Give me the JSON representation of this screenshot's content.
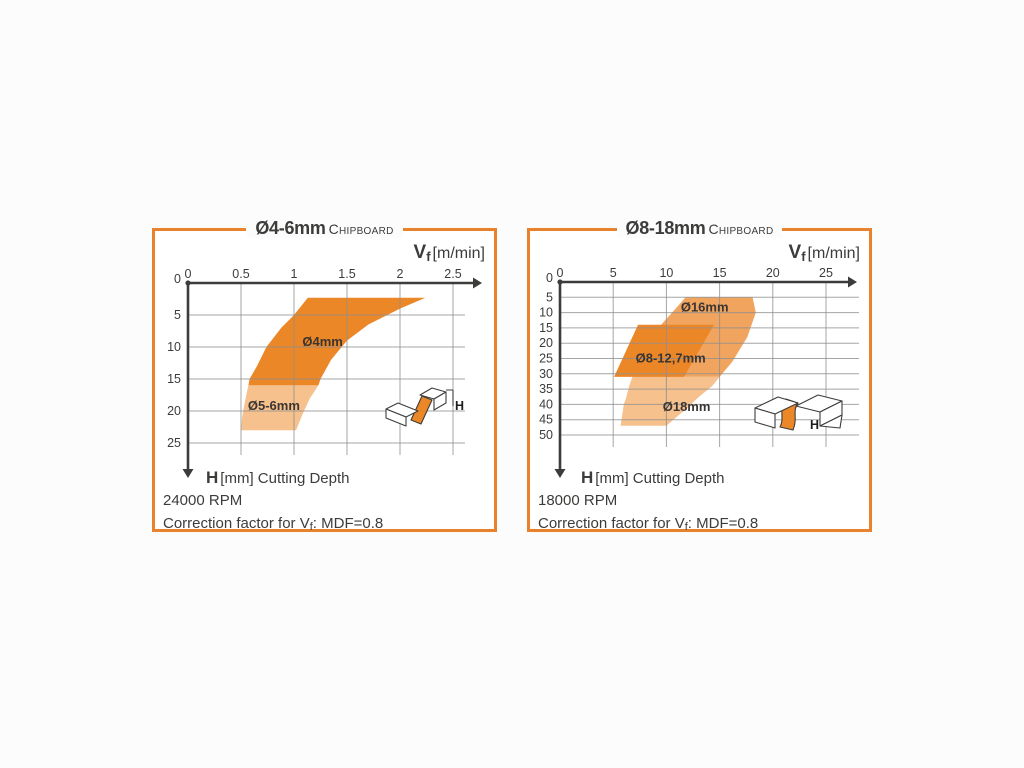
{
  "page": {
    "background": "#fcfcfc"
  },
  "colors": {
    "accent": "#E8822D",
    "band_dark": "#EC8728",
    "band_medium": "#F0A45E",
    "band_light": "#F6C18D",
    "axis": "#3C3C3B",
    "grid": "#8F8F8F",
    "text": "#3C3C3B"
  },
  "charts": [
    {
      "id": "c1",
      "title": {
        "size": "Ø4-6mm",
        "material": "Chipboard"
      },
      "x_axis": {
        "symbol": "V",
        "symbol_sub": "f",
        "unit": "[m/min]",
        "ticks": [
          "0",
          "0.5",
          "1",
          "1.5",
          "2",
          "2.5"
        ]
      },
      "y_axis": {
        "symbol": "H",
        "unit_label": "[mm] Cutting Depth",
        "ticks": [
          "0",
          "5",
          "10",
          "15",
          "20",
          "25"
        ]
      },
      "footer": {
        "rpm": "24000 RPM",
        "correction_pre": "Correction factor for V",
        "correction_sub": "f",
        "correction_post": ": MDF=0.8"
      },
      "icon_label": "H",
      "chart_data": {
        "type": "area",
        "title": "Ø4-6mm Chipboard",
        "xlabel": "Vf [m/min]",
        "ylabel": "H [mm] Cutting Depth",
        "x_range": [
          0,
          2.5
        ],
        "y_range": [
          0,
          25
        ],
        "y_axis_inverted": true,
        "grid": true,
        "annotations": [
          "24000 RPM",
          "Correction factor for Vf: MDF=0.8"
        ],
        "regions": [
          {
            "label": "Ø4mm",
            "shade": "dark",
            "label_at": [
              1.27,
              9.2
            ],
            "polygon": [
              [
                1.13,
                2.3
              ],
              [
                2.24,
                2.3
              ],
              [
                2.0,
                4.0
              ],
              [
                1.7,
                6.5
              ],
              [
                1.5,
                9.0
              ],
              [
                1.35,
                12.0
              ],
              [
                1.25,
                15.0
              ],
              [
                1.23,
                16.0
              ],
              [
                0.57,
                16.0
              ],
              [
                0.58,
                15.0
              ],
              [
                0.65,
                13.0
              ],
              [
                0.74,
                10.0
              ],
              [
                0.88,
                7.0
              ],
              [
                1.0,
                5.0
              ]
            ]
          },
          {
            "label": "Ø5-6mm",
            "shade": "light",
            "label_at": [
              0.81,
              19.2
            ],
            "polygon": [
              [
                0.57,
                16.0
              ],
              [
                1.23,
                16.0
              ],
              [
                1.15,
                18.0
              ],
              [
                1.08,
                20.5
              ],
              [
                1.02,
                23.0
              ],
              [
                0.5,
                23.0
              ],
              [
                0.51,
                21.0
              ],
              [
                0.52,
                20.0
              ],
              [
                0.55,
                17.5
              ]
            ]
          }
        ]
      }
    },
    {
      "id": "c2",
      "title": {
        "size": "Ø8-18mm",
        "material": "Chipboard"
      },
      "x_axis": {
        "symbol": "V",
        "symbol_sub": "f",
        "unit": "[m/min]",
        "ticks": [
          "0",
          "5",
          "10",
          "15",
          "20",
          "25"
        ]
      },
      "y_axis": {
        "symbol": "H",
        "unit_label": "[mm] Cutting Depth",
        "ticks": [
          "0",
          "5",
          "10",
          "15",
          "20",
          "25",
          "30",
          "35",
          "40",
          "45",
          "50"
        ]
      },
      "footer": {
        "rpm": "18000 RPM",
        "correction_pre": "Correction factor for V",
        "correction_sub": "f",
        "correction_post": ": MDF=0.8"
      },
      "icon_label": "H",
      "chart_data": {
        "type": "area",
        "title": "Ø8-18mm Chipboard",
        "xlabel": "Vf [m/min]",
        "ylabel": "H [mm] Cutting Depth",
        "x_range": [
          0,
          25
        ],
        "y_range": [
          0,
          50
        ],
        "y_axis_inverted": true,
        "grid": true,
        "annotations": [
          "18000 RPM",
          "Correction factor for Vf: MDF=0.8"
        ],
        "regions": [
          {
            "label": "Ø16mm",
            "shade": "medium",
            "label_at": [
              13.6,
              8.4
            ],
            "polygon": [
              [
                11.8,
                5
              ],
              [
                18.1,
                5
              ],
              [
                18.4,
                10
              ],
              [
                17.6,
                18
              ],
              [
                16.2,
                26
              ],
              [
                15.0,
                31
              ],
              [
                6.8,
                31
              ],
              [
                7.8,
                22
              ],
              [
                9.5,
                14
              ],
              [
                10.8,
                9
              ]
            ]
          },
          {
            "label": "Ø18mm",
            "shade": "light",
            "label_at": [
              11.9,
              40.8
            ],
            "polygon": [
              [
                6.8,
                31
              ],
              [
                15.0,
                31
              ],
              [
                14.3,
                34
              ],
              [
                12.9,
                38
              ],
              [
                12.0,
                41
              ],
              [
                10.0,
                47
              ],
              [
                5.7,
                47
              ],
              [
                6.0,
                40
              ],
              [
                6.2,
                38
              ],
              [
                6.5,
                34
              ]
            ]
          },
          {
            "label": "Ø8-12,7mm",
            "shade": "dark",
            "label_at": [
              10.4,
              25.0
            ],
            "polygon": [
              [
                7.33,
                14
              ],
              [
                14.47,
                14
              ],
              [
                11.65,
                31
              ],
              [
                5.08,
                31
              ]
            ]
          }
        ]
      }
    }
  ]
}
